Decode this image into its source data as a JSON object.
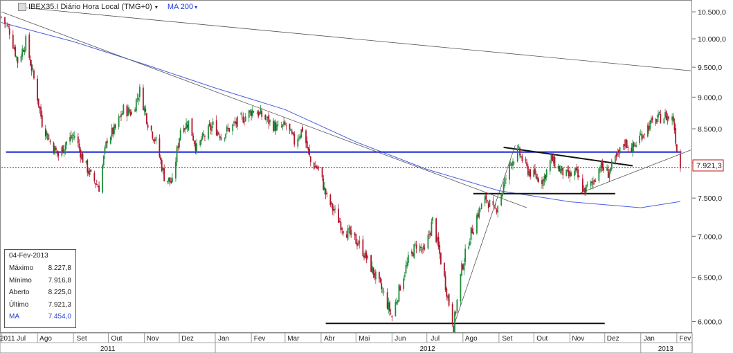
{
  "header": {
    "title": "IBEX35.I Diário Hora Local (TMG+0)",
    "ma_label": "MA 200",
    "caret": "▾"
  },
  "infobox": {
    "date": "04-Fev-2013",
    "rows": [
      {
        "label": "Máximo",
        "value": "8.227,8"
      },
      {
        "label": "Mínimo",
        "value": "7.916,8"
      },
      {
        "label": "Aberto",
        "value": "8.225,0"
      },
      {
        "label": "Último",
        "value": "7.921,3"
      },
      {
        "label": "MA",
        "value": "7.454,0"
      }
    ]
  },
  "colors": {
    "up_candle": "#1e8c3a",
    "down_candle": "#b0142b",
    "ma_line": "#4a5fe0",
    "support_line": "#1f2fd6",
    "last_price_line": "#c01010",
    "trend_line": "#555555"
  },
  "chart_data": {
    "type": "candlestick",
    "title": "IBEX35.I Diário Hora Local (TMG+0)",
    "y_axis": {
      "side": "right",
      "scale": "log",
      "ticks": [
        "10.500,0",
        "10.000,0",
        "9.500,0",
        "9.000,0",
        "8.500,0",
        "8.000,0",
        "7.500,0",
        "7.000,0",
        "6.500,0",
        "6.000,0"
      ],
      "tick_values": [
        10500,
        10000,
        9500,
        9000,
        8500,
        8000,
        7500,
        7000,
        6500,
        6000
      ],
      "range": [
        5900,
        10700
      ]
    },
    "x_axis": {
      "month_labels": [
        "2011 Jul",
        "Ago",
        "Set",
        "Out",
        "Nov",
        "Dez",
        "Jan",
        "Fev",
        "Mar",
        "Abr",
        "Mai",
        "Jun",
        "Jul",
        "Ago",
        "Set",
        "Out",
        "Nov",
        "Dez",
        "Jan",
        "Fev"
      ],
      "first_label_text": "2011 Jul",
      "year_labels": [
        "2011",
        "2012",
        "2013"
      ],
      "range": [
        "2011-07-01",
        "2013-02-13"
      ]
    },
    "last_price_label": "7.921,3",
    "last_price": 7921.3,
    "price_path": [
      [
        "2011-07-01",
        10400
      ],
      [
        "2011-07-08",
        10150
      ],
      [
        "2011-07-15",
        9600
      ],
      [
        "2011-07-22",
        9950
      ],
      [
        "2011-07-29",
        9300
      ],
      [
        "2011-08-05",
        8600
      ],
      [
        "2011-08-12",
        8300
      ],
      [
        "2011-08-19",
        8100
      ],
      [
        "2011-08-26",
        8300
      ],
      [
        "2011-09-02",
        8400
      ],
      [
        "2011-09-09",
        8050
      ],
      [
        "2011-09-16",
        7800
      ],
      [
        "2011-09-23",
        7650
      ],
      [
        "2011-09-30",
        8350
      ],
      [
        "2011-10-07",
        8500
      ],
      [
        "2011-10-14",
        8800
      ],
      [
        "2011-10-21",
        8750
      ],
      [
        "2011-10-28",
        9100
      ],
      [
        "2011-11-04",
        8600
      ],
      [
        "2011-11-11",
        8300
      ],
      [
        "2011-11-18",
        7800
      ],
      [
        "2011-11-25",
        7700
      ],
      [
        "2011-12-02",
        8500
      ],
      [
        "2011-12-09",
        8600
      ],
      [
        "2011-12-16",
        8200
      ],
      [
        "2011-12-23",
        8400
      ],
      [
        "2011-12-30",
        8550
      ],
      [
        "2012-01-06",
        8400
      ],
      [
        "2012-01-13",
        8500
      ],
      [
        "2012-01-20",
        8600
      ],
      [
        "2012-01-27",
        8700
      ],
      [
        "2012-02-03",
        8800
      ],
      [
        "2012-02-10",
        8700
      ],
      [
        "2012-02-17",
        8600
      ],
      [
        "2012-02-24",
        8500
      ],
      [
        "2012-03-02",
        8550
      ],
      [
        "2012-03-09",
        8300
      ],
      [
        "2012-03-16",
        8500
      ],
      [
        "2012-03-23",
        8000
      ],
      [
        "2012-03-30",
        7900
      ],
      [
        "2012-04-06",
        7500
      ],
      [
        "2012-04-13",
        7300
      ],
      [
        "2012-04-20",
        7100
      ],
      [
        "2012-04-27",
        7000
      ],
      [
        "2012-05-04",
        6900
      ],
      [
        "2012-05-11",
        6700
      ],
      [
        "2012-05-18",
        6500
      ],
      [
        "2012-05-25",
        6300
      ],
      [
        "2012-06-01",
        6050
      ],
      [
        "2012-06-08",
        6400
      ],
      [
        "2012-06-15",
        6700
      ],
      [
        "2012-06-22",
        6900
      ],
      [
        "2012-06-29",
        6800
      ],
      [
        "2012-07-06",
        7200
      ],
      [
        "2012-07-13",
        6700
      ],
      [
        "2012-07-20",
        6200
      ],
      [
        "2012-07-24",
        5950
      ],
      [
        "2012-07-31",
        6600
      ],
      [
        "2012-08-07",
        7000
      ],
      [
        "2012-08-14",
        7300
      ],
      [
        "2012-08-21",
        7500
      ],
      [
        "2012-08-28",
        7300
      ],
      [
        "2012-09-04",
        7600
      ],
      [
        "2012-09-11",
        8000
      ],
      [
        "2012-09-18",
        8150
      ],
      [
        "2012-09-25",
        7900
      ],
      [
        "2012-10-02",
        7800
      ],
      [
        "2012-10-09",
        7750
      ],
      [
        "2012-10-16",
        8050
      ],
      [
        "2012-10-23",
        7900
      ],
      [
        "2012-10-30",
        7800
      ],
      [
        "2012-11-06",
        7850
      ],
      [
        "2012-11-13",
        7600
      ],
      [
        "2012-11-20",
        7700
      ],
      [
        "2012-11-27",
        7950
      ],
      [
        "2012-12-04",
        7850
      ],
      [
        "2012-12-11",
        8050
      ],
      [
        "2012-12-18",
        8300
      ],
      [
        "2012-12-25",
        8200
      ],
      [
        "2013-01-01",
        8400
      ],
      [
        "2013-01-08",
        8550
      ],
      [
        "2013-01-15",
        8650
      ],
      [
        "2013-01-22",
        8700
      ],
      [
        "2013-01-29",
        8650
      ],
      [
        "2013-02-01",
        8200
      ],
      [
        "2013-02-04",
        7921
      ]
    ],
    "series": [
      {
        "name": "MA 200",
        "points": [
          [
            "2011-07-01",
            10300
          ],
          [
            "2011-09-01",
            9950
          ],
          [
            "2011-11-01",
            9550
          ],
          [
            "2012-01-01",
            9150
          ],
          [
            "2012-03-01",
            8800
          ],
          [
            "2012-05-01",
            8300
          ],
          [
            "2012-07-01",
            7900
          ],
          [
            "2012-09-01",
            7600
          ],
          [
            "2012-11-01",
            7450
          ],
          [
            "2013-01-01",
            7370
          ],
          [
            "2013-02-04",
            7454
          ]
        ]
      }
    ],
    "drawn_lines": [
      {
        "kind": "horizontal",
        "price": 8150,
        "from": "2011-07-05",
        "to": "2013-02-05",
        "color": "blue"
      },
      {
        "kind": "horizontal",
        "price": 7921.3,
        "from": "2011-07-01",
        "to": "2013-02-13",
        "color": "red-dotted"
      },
      {
        "kind": "horizontal",
        "price": 5980,
        "from": "2012-04-05",
        "to": "2012-12-01"
      },
      {
        "kind": "horizontal",
        "price": 7560,
        "from": "2012-08-10",
        "to": "2012-12-10"
      },
      {
        "kind": "segment",
        "from": [
          "2012-09-05",
          8220
        ],
        "to": "2012-12-25",
        "to_price": 7950
      },
      {
        "kind": "segment",
        "from": [
          "2012-07-24",
          5950
        ],
        "to": "2012-09-15",
        "to_price": 8250
      },
      {
        "kind": "segment",
        "from": [
          "2012-11-10",
          7570
        ],
        "to": "2013-02-13",
        "to_price": 8180
      },
      {
        "kind": "segment",
        "from": [
          "2011-07-01",
          10500
        ],
        "to": "2012-09-25",
        "to_price": 7370
      },
      {
        "kind": "segment",
        "from": [
          "2011-07-20",
          10580
        ],
        "to": "2013-02-13",
        "to_price": 9440
      }
    ]
  }
}
